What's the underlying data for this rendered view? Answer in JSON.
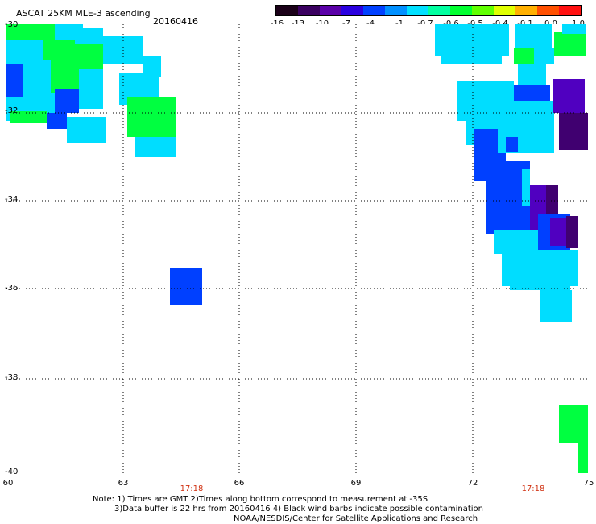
{
  "header": {
    "title": "ASCAT 25KM MLE-3 ascending",
    "date": "20160416"
  },
  "colorbar": {
    "labels": [
      "-16",
      "-13",
      "-10",
      "-7",
      "-4",
      "-1",
      "-0.7",
      "-0.6",
      "-0.5",
      "-0.4",
      "-0.1",
      "0.0",
      "1.0"
    ],
    "colors": [
      "#1a0018",
      "#3a0060",
      "#5a00a8",
      "#2a00e0",
      "#0040ff",
      "#0090ff",
      "#00e0ff",
      "#00ffa0",
      "#00ff30",
      "#60ff00",
      "#e0ff00",
      "#ffb000",
      "#ff5000",
      "#ff1010"
    ]
  },
  "map": {
    "lat_labels": [
      "-30",
      "-32",
      "-34",
      "-36",
      "-38",
      "-40"
    ],
    "lon_labels": [
      "60",
      "63",
      "66",
      "69",
      "72",
      "75"
    ],
    "time_labels": [
      "17:18",
      "17:18"
    ]
  },
  "notes": {
    "line1": "Note: 1) Times are GMT 2)Times along bottom correspond to measurement at -35S",
    "line2": "3)Data buffer is 22 hrs from 20160416 4) Black wind barbs indicate possible contamination",
    "line3": "NOAA/NESDIS/Center for Satellite Applications and Research"
  },
  "colors": {
    "cyan": "#00ddff",
    "green": "#00ff40",
    "blue": "#0040ff",
    "purple": "#5000c0",
    "dark_purple": "#400070"
  }
}
